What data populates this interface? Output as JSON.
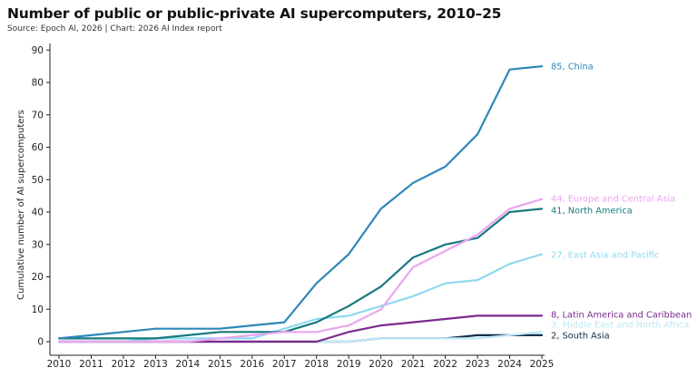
{
  "header": {
    "title": "Number of public or public-private AI supercomputers, 2010–25",
    "subtitle": "Source: Epoch AI, 2026 | Chart: 2026 AI Index report"
  },
  "chart_data": {
    "type": "line",
    "title": "Number of public or public-private AI supercomputers, 2010–25",
    "xlabel": "",
    "ylabel": "Cumulative number of AI supercomputers",
    "x": [
      "2010",
      "2011",
      "2012",
      "2013",
      "2014",
      "2015",
      "2016",
      "2017",
      "2018",
      "2019",
      "2020",
      "2021",
      "2022",
      "2023",
      "2024",
      "2025"
    ],
    "yticks": [
      0,
      10,
      20,
      30,
      40,
      50,
      60,
      70,
      80,
      90
    ],
    "ylim": [
      0,
      92
    ],
    "grid": false,
    "series": [
      {
        "name": "China",
        "label": "85, China",
        "color": "#2f87b8",
        "values": [
          1,
          2,
          3,
          4,
          4,
          4,
          5,
          6,
          18,
          27,
          41,
          49,
          54,
          64,
          84,
          85
        ]
      },
      {
        "name": "Europe and Central Asia",
        "label": "44, Europe and Central Asia",
        "color": "#e9a6ee",
        "values": [
          0,
          0,
          0,
          0,
          0,
          1,
          2,
          3,
          3,
          5,
          10,
          23,
          28,
          33,
          41,
          44
        ]
      },
      {
        "name": "North America",
        "label": "41, North America",
        "color": "#177a7f",
        "values": [
          1,
          1,
          1,
          1,
          2,
          3,
          3,
          3,
          6,
          11,
          17,
          26,
          30,
          32,
          40,
          41
        ]
      },
      {
        "name": "East Asia and Pacific",
        "label": "27, East Asia and Pacific",
        "color": "#8fd9ef",
        "values": [
          0,
          0,
          0,
          1,
          1,
          1,
          1,
          4,
          7,
          8,
          11,
          14,
          18,
          19,
          24,
          27
        ]
      },
      {
        "name": "Latin America and Caribbean",
        "label": "8, Latin America and Caribbean",
        "color": "#7b2a8f",
        "values": [
          0,
          0,
          0,
          0,
          0,
          0,
          0,
          0,
          0,
          3,
          5,
          6,
          7,
          8,
          8,
          8
        ]
      },
      {
        "name": "Middle East and North Africa",
        "label": "3, Middle East and North Africa",
        "color": "#bfe7f7",
        "values": [
          0,
          0,
          0,
          0,
          0,
          0,
          0,
          0,
          0,
          0,
          1,
          1,
          1,
          1,
          2,
          3
        ]
      },
      {
        "name": "South Asia",
        "label": "2, South Asia",
        "color": "#0f2f4a",
        "values": [
          0,
          0,
          0,
          0,
          0,
          0,
          0,
          0,
          0,
          0,
          1,
          1,
          1,
          2,
          2,
          2
        ]
      }
    ]
  }
}
